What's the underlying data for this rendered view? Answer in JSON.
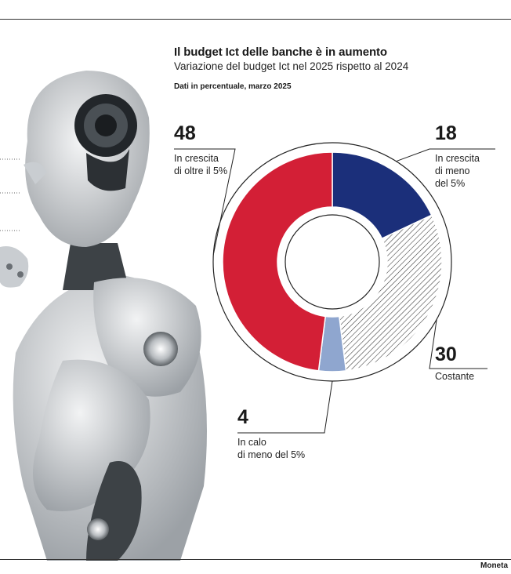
{
  "title": "Il budget Ict delle banche è in aumento",
  "subtitle": "Variazione del budget Ict nel 2025 rispetto al 2024",
  "note": "Dati in percentuale, marzo 2025",
  "credit": "Moneta",
  "chart_data": {
    "type": "pie",
    "variant": "donut",
    "start_angle_deg": 0,
    "direction": "clockwise",
    "slices": [
      {
        "value": 18,
        "label": "In crescita\ndi meno\ndel 5%",
        "value_label": "18",
        "color": "#1b2f7a",
        "pattern": "none"
      },
      {
        "value": 30,
        "label": "Costante",
        "value_label": "30",
        "color": "#ffffff",
        "pattern": "hatch"
      },
      {
        "value": 4,
        "label": "In calo\ndi meno del 5%",
        "value_label": "4",
        "color": "#8fa6cf",
        "pattern": "none"
      },
      {
        "value": 48,
        "label": "In crescita\ndi oltre il 5%",
        "value_label": "48",
        "color": "#d31f36",
        "pattern": "none"
      }
    ]
  }
}
